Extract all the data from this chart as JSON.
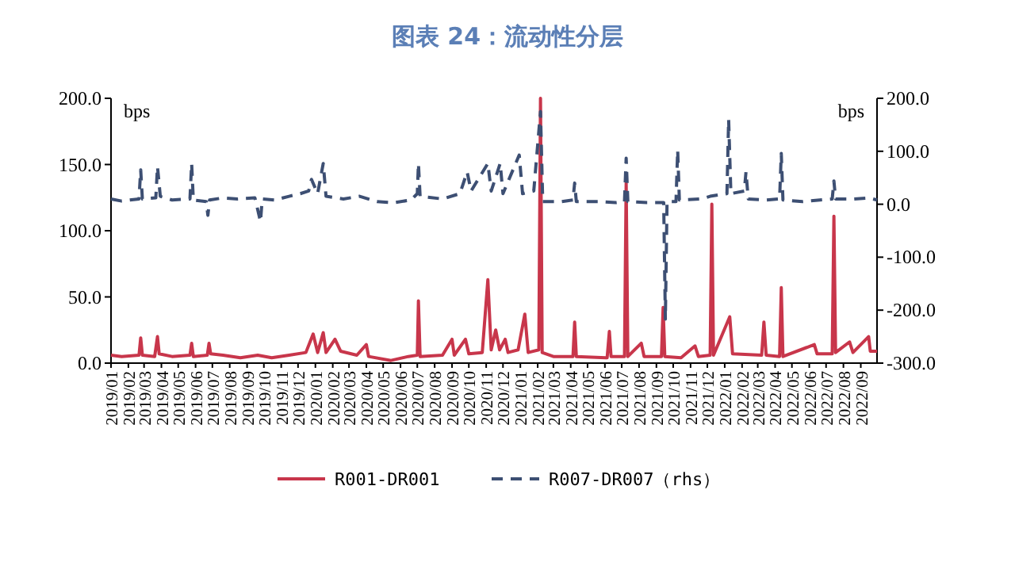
{
  "chart_data": {
    "type": "line",
    "title": "图表 24：流动性分层",
    "ylabel": "bps",
    "y2label": "bps",
    "legend": "bottom",
    "grid": false,
    "xlim": [
      "2019-01-01",
      "2022-09-30"
    ],
    "xticks": [
      {
        "value": "2019-01",
        "label": "2019/01"
      },
      {
        "value": "2019-02",
        "label": "2019/02"
      },
      {
        "value": "2019-03",
        "label": "2019/03"
      },
      {
        "value": "2019-04",
        "label": "2019/04"
      },
      {
        "value": "2019-05",
        "label": "2019/05"
      },
      {
        "value": "2019-06",
        "label": "2019/06"
      },
      {
        "value": "2019-07",
        "label": "2019/07"
      },
      {
        "value": "2019-08",
        "label": "2019/08"
      },
      {
        "value": "2019-09",
        "label": "2019/09"
      },
      {
        "value": "2019-10",
        "label": "2019/10"
      },
      {
        "value": "2019-11",
        "label": "2019/11"
      },
      {
        "value": "2019-12",
        "label": "2019/12"
      },
      {
        "value": "2020-01",
        "label": "2020/01"
      },
      {
        "value": "2020-02",
        "label": "2020/02"
      },
      {
        "value": "2020-03",
        "label": "2020/03"
      },
      {
        "value": "2020-04",
        "label": "2020/04"
      },
      {
        "value": "2020-05",
        "label": "2020/05"
      },
      {
        "value": "2020-06",
        "label": "2020/06"
      },
      {
        "value": "2020-07",
        "label": "2020/07"
      },
      {
        "value": "2020-08",
        "label": "2020/08"
      },
      {
        "value": "2020-09",
        "label": "2020/09"
      },
      {
        "value": "2020-10",
        "label": "2020/10"
      },
      {
        "value": "2020-11",
        "label": "2020/11"
      },
      {
        "value": "2020-12",
        "label": "2020/12"
      },
      {
        "value": "2021-01",
        "label": "2021/01"
      },
      {
        "value": "2021-02",
        "label": "2021/02"
      },
      {
        "value": "2021-03",
        "label": "2021/03"
      },
      {
        "value": "2021-04",
        "label": "2021/04"
      },
      {
        "value": "2021-05",
        "label": "2021/05"
      },
      {
        "value": "2021-06",
        "label": "2021/06"
      },
      {
        "value": "2021-07",
        "label": "2021/07"
      },
      {
        "value": "2021-08",
        "label": "2021/08"
      },
      {
        "value": "2021-09",
        "label": "2021/09"
      },
      {
        "value": "2021-10",
        "label": "2021/10"
      },
      {
        "value": "2021-11",
        "label": "2021/11"
      },
      {
        "value": "2021-12",
        "label": "2021/12"
      },
      {
        "value": "2022-01",
        "label": "2022/01"
      },
      {
        "value": "2022-02",
        "label": "2022/02"
      },
      {
        "value": "2022-03",
        "label": "2022/03"
      },
      {
        "value": "2022-04",
        "label": "2022/04"
      },
      {
        "value": "2022-05",
        "label": "2022/05"
      },
      {
        "value": "2022-06",
        "label": "2022/06"
      },
      {
        "value": "2022-07",
        "label": "2022/07"
      },
      {
        "value": "2022-08",
        "label": "2022/08"
      },
      {
        "value": "2022-09",
        "label": "2022/09"
      }
    ],
    "ylim": [
      0,
      200
    ],
    "yticks": [
      {
        "value": 0,
        "label": "0.0"
      },
      {
        "value": 50,
        "label": "50.0"
      },
      {
        "value": 100,
        "label": "100.0"
      },
      {
        "value": 150,
        "label": "150.0"
      },
      {
        "value": 200,
        "label": "200.0"
      }
    ],
    "y2lim": [
      -300,
      200
    ],
    "y2ticks": [
      {
        "value": -300,
        "label": "-300.0"
      },
      {
        "value": -200,
        "label": "-200.0"
      },
      {
        "value": -100,
        "label": "-100.0"
      },
      {
        "value": 0,
        "label": "0.0"
      },
      {
        "value": 100,
        "label": "100.0"
      },
      {
        "value": 200,
        "label": "200.0"
      }
    ],
    "series": [
      {
        "name": "R001-DR001",
        "color": "#c8364b",
        "line_style": "solid",
        "x": [
          "2019-01-01",
          "2019-01-20",
          "2019-02-20",
          "2019-02-23",
          "2019-02-26",
          "2019-03-20",
          "2019-03-25",
          "2019-03-28",
          "2019-04-20",
          "2019-05-22",
          "2019-05-25",
          "2019-05-28",
          "2019-06-22",
          "2019-06-25",
          "2019-06-28",
          "2019-07-20",
          "2019-08-20",
          "2019-09-20",
          "2019-10-15",
          "2019-11-15",
          "2019-12-15",
          "2019-12-28",
          "2020-01-05",
          "2020-01-15",
          "2020-01-20",
          "2020-02-05",
          "2020-02-15",
          "2020-03-15",
          "2020-04-01",
          "2020-04-05",
          "2020-05-15",
          "2020-06-15",
          "2020-07-01",
          "2020-07-03",
          "2020-07-06",
          "2020-08-15",
          "2020-09-01",
          "2020-09-05",
          "2020-09-25",
          "2020-10-01",
          "2020-10-25",
          "2020-11-04",
          "2020-11-10",
          "2020-11-18",
          "2020-11-25",
          "2020-12-05",
          "2020-12-10",
          "2020-12-28",
          "2021-01-09",
          "2021-01-15",
          "2021-02-03",
          "2021-02-06",
          "2021-02-09",
          "2021-03-01",
          "2021-04-05",
          "2021-04-08",
          "2021-04-11",
          "2021-06-05",
          "2021-06-09",
          "2021-06-12",
          "2021-07-06",
          "2021-07-09",
          "2021-07-12",
          "2021-08-05",
          "2021-08-10",
          "2021-09-10",
          "2021-09-13",
          "2021-09-16",
          "2021-10-15",
          "2021-11-09",
          "2021-11-15",
          "2021-12-06",
          "2021-12-09",
          "2021-12-12",
          "2022-01-10",
          "2022-01-15",
          "2022-03-08",
          "2022-03-12",
          "2022-03-16",
          "2022-04-09",
          "2022-04-12",
          "2022-04-15",
          "2022-06-10",
          "2022-06-15",
          "2022-07-12",
          "2022-07-15",
          "2022-07-18",
          "2022-08-12",
          "2022-08-18",
          "2022-09-15",
          "2022-09-18",
          "2022-09-30"
        ],
        "values": [
          6,
          5,
          6,
          19,
          6,
          5,
          20,
          7,
          5,
          6,
          15,
          5,
          6,
          15,
          7,
          6,
          4,
          6,
          4,
          6,
          8,
          22,
          8,
          23,
          8,
          18,
          9,
          6,
          14,
          5,
          2,
          5,
          6,
          47,
          5,
          6,
          18,
          6,
          18,
          7,
          8,
          63,
          10,
          25,
          10,
          18,
          8,
          10,
          37,
          8,
          10,
          200,
          8,
          5,
          5,
          31,
          5,
          4,
          24,
          5,
          5,
          136,
          5,
          15,
          5,
          5,
          42,
          5,
          4,
          13,
          5,
          6,
          120,
          6,
          35,
          7,
          6,
          31,
          6,
          5,
          57,
          5,
          14,
          7,
          7,
          111,
          8,
          16,
          8,
          20,
          9,
          9
        ]
      },
      {
        "name": "R007-DR007（rhs）",
        "color": "#3d4f73",
        "line_style": "dashed",
        "axis": "y2",
        "x": [
          "2019-01-01",
          "2019-01-20",
          "2019-02-20",
          "2019-02-23",
          "2019-02-26",
          "2019-03-22",
          "2019-03-25",
          "2019-03-30",
          "2019-04-20",
          "2019-05-22",
          "2019-05-25",
          "2019-05-28",
          "2019-06-20",
          "2019-06-23",
          "2019-06-26",
          "2019-07-20",
          "2019-08-15",
          "2019-09-15",
          "2019-09-25",
          "2019-09-28",
          "2019-10-20",
          "2019-11-15",
          "2019-12-05",
          "2019-12-20",
          "2019-12-25",
          "2020-01-05",
          "2020-01-15",
          "2020-01-20",
          "2020-02-20",
          "2020-03-20",
          "2020-04-20",
          "2020-05-20",
          "2020-06-20",
          "2020-07-01",
          "2020-07-03",
          "2020-07-06",
          "2020-08-15",
          "2020-09-15",
          "2020-09-28",
          "2020-10-05",
          "2020-11-04",
          "2020-11-10",
          "2020-11-26",
          "2020-12-01",
          "2020-12-30",
          "2021-01-05",
          "2021-01-25",
          "2021-02-06",
          "2021-02-10",
          "2021-03-15",
          "2021-04-05",
          "2021-04-08",
          "2021-04-11",
          "2021-05-20",
          "2021-06-20",
          "2021-07-06",
          "2021-07-09",
          "2021-07-12",
          "2021-08-15",
          "2021-09-14",
          "2021-09-17",
          "2021-09-20",
          "2021-10-06",
          "2021-10-09",
          "2021-10-12",
          "2021-11-20",
          "2021-12-06",
          "2022-01-05",
          "2022-01-08",
          "2022-01-12",
          "2022-02-05",
          "2022-02-08",
          "2022-02-12",
          "2022-03-15",
          "2022-04-09",
          "2022-04-12",
          "2022-04-15",
          "2022-05-20",
          "2022-06-20",
          "2022-07-12",
          "2022-07-15",
          "2022-07-18",
          "2022-08-20",
          "2022-09-15",
          "2022-09-30"
        ],
        "values": [
          10,
          6,
          10,
          65,
          10,
          12,
          71,
          15,
          8,
          10,
          77,
          8,
          5,
          -21,
          8,
          12,
          10,
          12,
          -33,
          10,
          8,
          15,
          20,
          25,
          47,
          20,
          77,
          15,
          10,
          15,
          5,
          3,
          8,
          20,
          77,
          15,
          10,
          20,
          61,
          25,
          77,
          25,
          77,
          20,
          93,
          20,
          25,
          175,
          5,
          5,
          8,
          40,
          5,
          5,
          3,
          5,
          87,
          5,
          3,
          3,
          -217,
          5,
          5,
          102,
          8,
          10,
          15,
          20,
          160,
          20,
          25,
          61,
          10,
          8,
          10,
          96,
          8,
          5,
          8,
          10,
          44,
          10,
          10,
          12,
          8
        ]
      }
    ]
  }
}
